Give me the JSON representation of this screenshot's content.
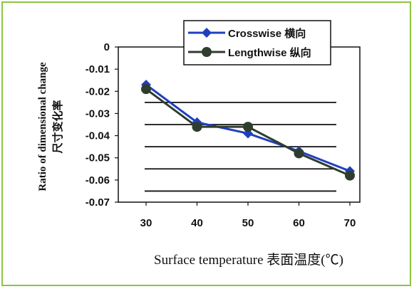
{
  "chart_data": {
    "type": "line",
    "title": "",
    "xlabel": "Surface temperature  表面温度(℃)",
    "ylabel_line1": "Ratio of dimensional change",
    "ylabel_line2": "尺寸变化率",
    "categories": [
      "30",
      "40",
      "50",
      "60",
      "70"
    ],
    "x": [
      30,
      40,
      50,
      60,
      70
    ],
    "ylim": [
      -0.07,
      0
    ],
    "yticks": [
      0,
      -0.01,
      -0.02,
      -0.03,
      -0.04,
      -0.05,
      -0.06,
      -0.07
    ],
    "ytick_labels": [
      "0",
      "-0.01",
      "-0.02",
      "-0.03",
      "-0.04",
      "-0.05",
      "-0.06",
      "-0.07"
    ],
    "grid_y": [
      -0.025,
      -0.035,
      -0.045,
      -0.055,
      -0.065
    ],
    "legend_position": "top-right",
    "series": [
      {
        "name": "Crosswise 横向",
        "values": [
          -0.017,
          -0.034,
          -0.039,
          -0.047,
          -0.056
        ],
        "color": "#1f3fbf",
        "marker": "diamond"
      },
      {
        "name": "Lengthwise 纵向",
        "values": [
          -0.019,
          -0.036,
          -0.036,
          -0.048,
          -0.058
        ],
        "color": "#2e3d2e",
        "marker": "circle"
      }
    ]
  }
}
